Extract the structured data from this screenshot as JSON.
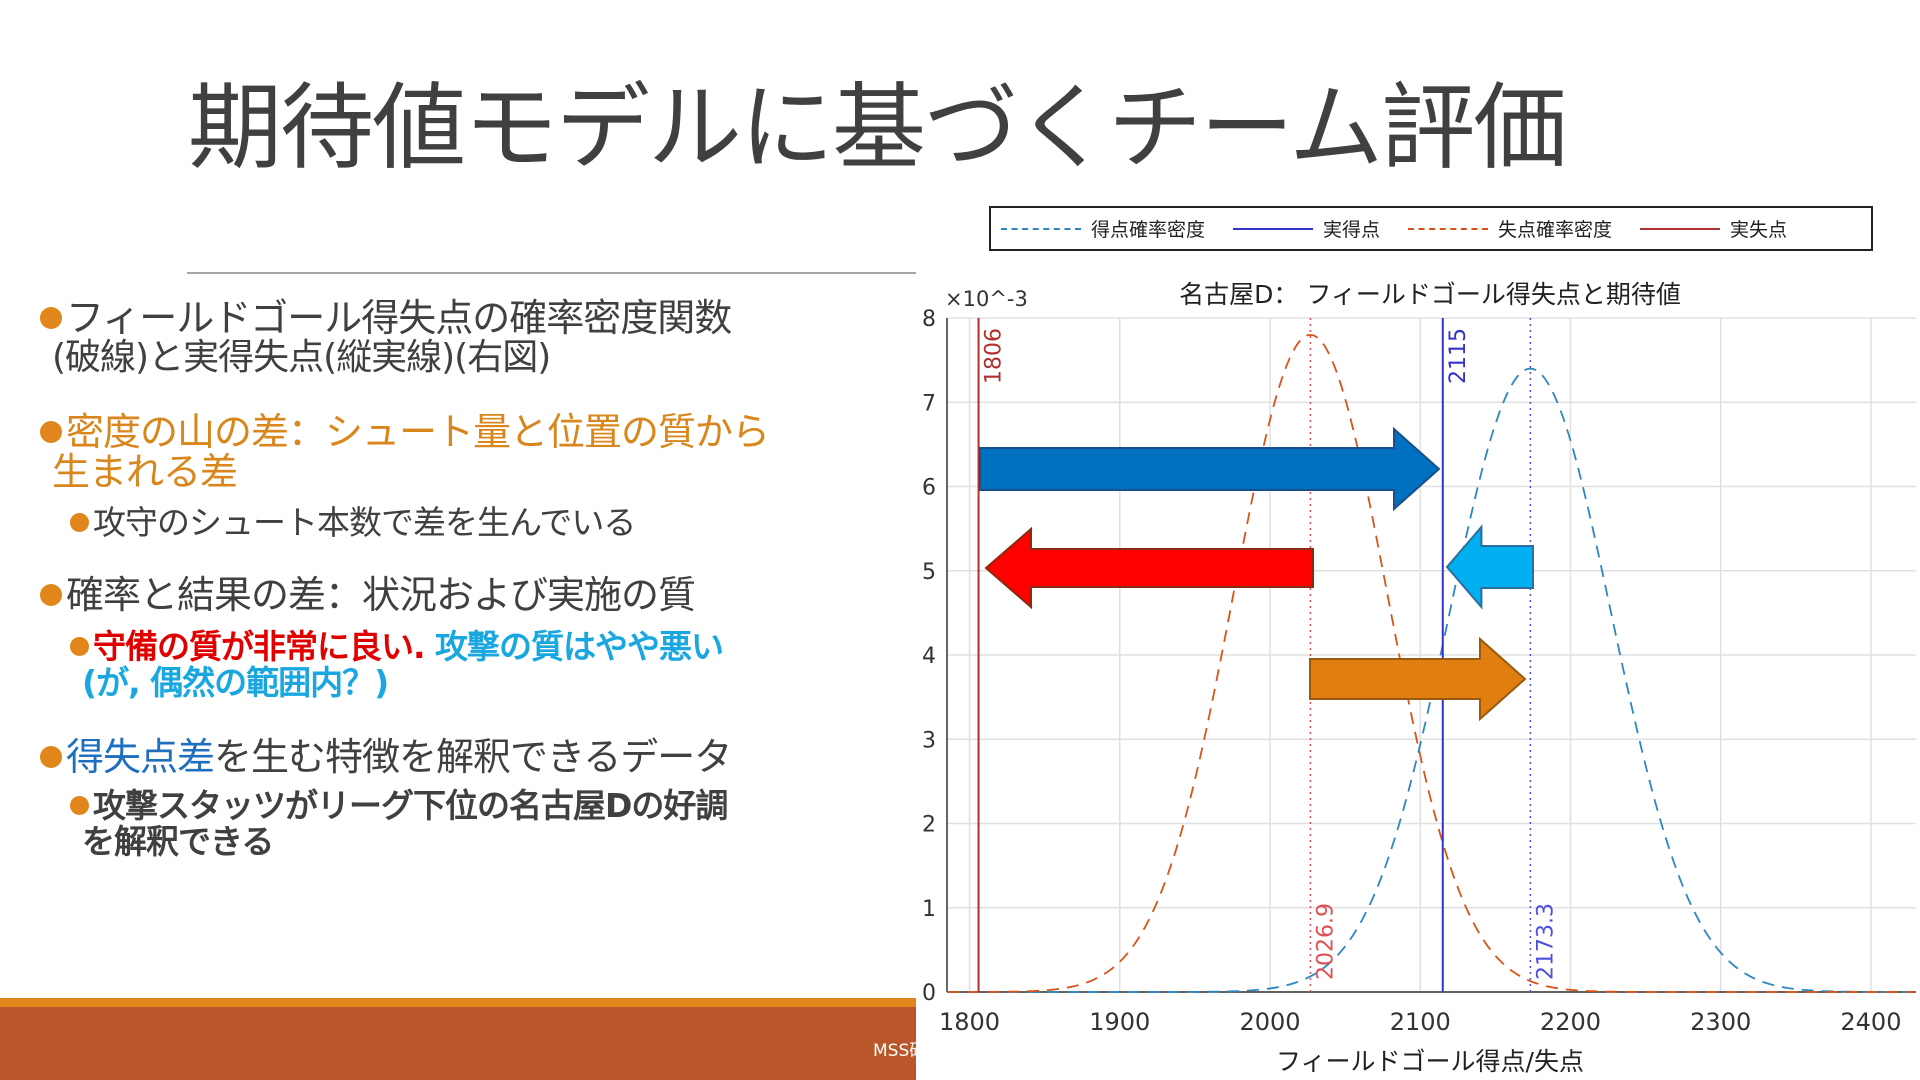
{
  "slide": {
    "title": "期待値モデルに基づくチーム評価",
    "bullets": {
      "b1_line1": "フィールドゴール得失点の確率密度関数",
      "b1_line2": "(破線)と実得失点(縦実線)(右図)",
      "b2_line1": "密度の山の差：シュート量と位置の質から",
      "b2_line2": "生まれる差",
      "b2_sub": "攻守のシュート本数で差を生んでいる",
      "b3": "確率と結果の差：状況および実施の質",
      "b3_sub_red": "守備の質が非常に良い.",
      "b3_sub_cyan1": " 攻撃の質はやや悪い",
      "b3_sub_cyan2": "(が, 偶然の範囲内？)",
      "b4_blue": "得失点差",
      "b4_rest": "を生む特徴を解釈できるデータ",
      "b4_sub_line1": "攻撃スタッツがリーグ下位の名古屋Dの好調",
      "b4_sub_line2": "を解釈できる"
    },
    "footer": "MSS研",
    "colors": {
      "accent": "#E0861A",
      "footer": "#B9572A",
      "orange_text": "#D9861C",
      "red_text": "#E00000",
      "cyan_text": "#1AA7E0",
      "blue_text": "#1F6FC0"
    }
  },
  "chart_data": {
    "type": "line",
    "title": "名古屋D： フィールドゴール得失点と期待値",
    "xlabel": "フィールドゴール得点/失点",
    "ylabel": "",
    "y_exponent": "×10^-3",
    "y_exponent_base": "×10",
    "y_exponent_power": "-3",
    "xlim": [
      1785,
      2430
    ],
    "ylim": [
      0,
      8
    ],
    "x_ticks": [
      "1800",
      "1900",
      "2000",
      "2100",
      "2200",
      "2300",
      "2400"
    ],
    "y_ticks": [
      "0",
      "1",
      "2",
      "3",
      "4",
      "5",
      "6",
      "7",
      "8"
    ],
    "grid": true,
    "legend_placement": "top",
    "legend": [
      "得点確率密度",
      "実得点",
      "失点確率密度",
      "実失点"
    ],
    "series": [
      {
        "name": "得点確率密度",
        "style": "dashed",
        "color": "#2E86C1",
        "distribution": "normal",
        "mean": 2173.3,
        "peak": 7.4
      },
      {
        "name": "失点確率密度",
        "style": "dashed",
        "color": "#D95319",
        "distribution": "normal",
        "mean": 2026.9,
        "peak": 7.8
      }
    ],
    "vlines": [
      {
        "name": "実得点",
        "value": 2115,
        "label": "2115",
        "style": "solid",
        "color": "#3333CC"
      },
      {
        "name": "実失点",
        "value": 1806,
        "label": "1806",
        "style": "solid",
        "color": "#B03030"
      },
      {
        "value": 2026.9,
        "label": "2026.9",
        "style": "dotted",
        "color": "#E05050"
      },
      {
        "value": 2173.3,
        "label": "2173.3",
        "style": "dotted",
        "color": "#5050E0"
      }
    ],
    "annotations": [
      {
        "type": "arrow",
        "direction": "right",
        "color": "#0070C0"
      },
      {
        "type": "arrow",
        "direction": "left",
        "color": "#FF0000"
      },
      {
        "type": "arrow",
        "direction": "left",
        "color": "#00B0F0"
      },
      {
        "type": "arrow",
        "direction": "right",
        "color": "#E07F10"
      }
    ]
  }
}
